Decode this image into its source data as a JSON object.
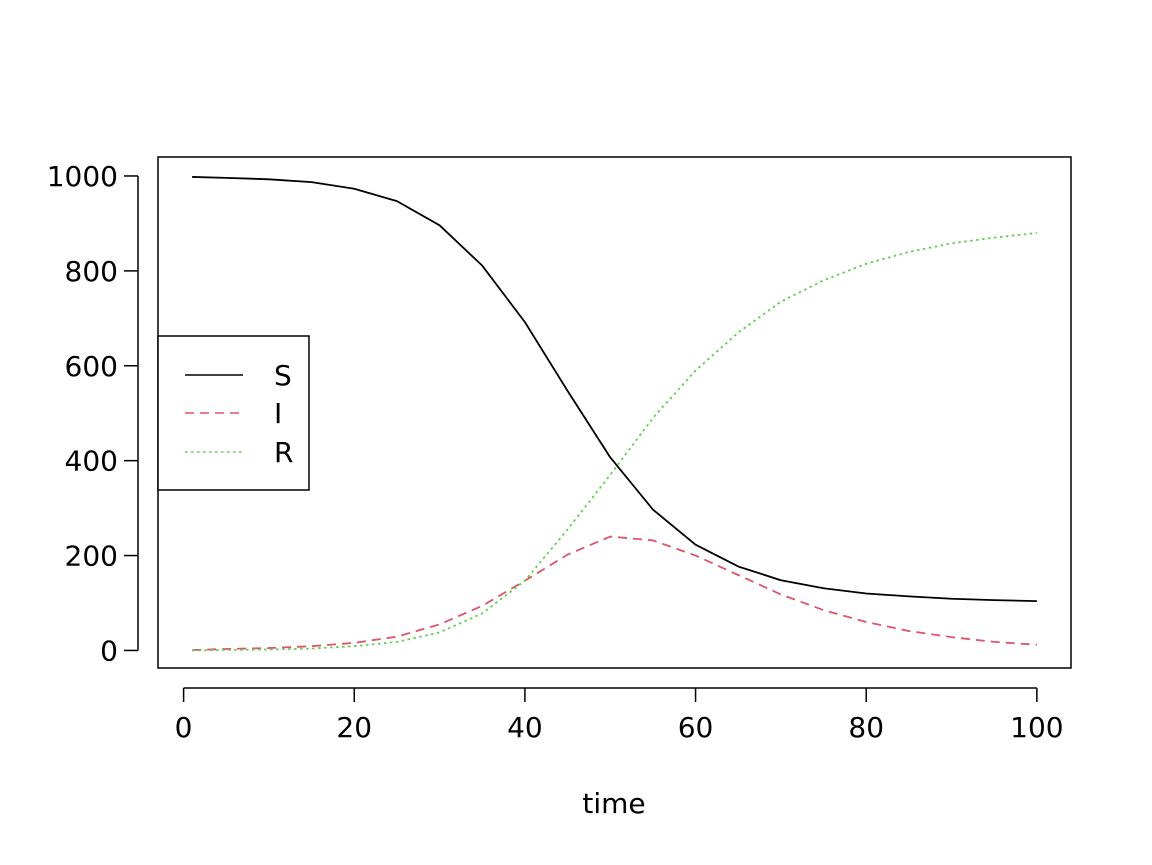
{
  "chart_data": {
    "type": "line",
    "title": "",
    "xlabel": "time",
    "ylabel": "",
    "xlim": [
      -3,
      104
    ],
    "ylim": [
      -37,
      1040
    ],
    "x_ticks": [
      0,
      20,
      40,
      60,
      80,
      100
    ],
    "y_ticks": [
      0,
      200,
      400,
      600,
      800,
      1000
    ],
    "grid": false,
    "legend": {
      "placement": "left",
      "entries": [
        "S",
        "I",
        "R"
      ]
    },
    "x": [
      1,
      5,
      10,
      15,
      20,
      25,
      30,
      35,
      40,
      45,
      50,
      55,
      60,
      65,
      70,
      75,
      80,
      85,
      90,
      95,
      100
    ],
    "series": [
      {
        "name": "S",
        "color": "#000000",
        "dash": "solid",
        "values": [
          998,
          996,
          993,
          987,
          973,
          947,
          896,
          811,
          692,
          547,
          407,
          297,
          223,
          177,
          148,
          131,
          120,
          114,
          109,
          106,
          104
        ]
      },
      {
        "name": "I",
        "color": "#DF536B",
        "dash": "dashed",
        "values": [
          1,
          3,
          5,
          9,
          16,
          29,
          55,
          94,
          147,
          202,
          240,
          232,
          200,
          159,
          118,
          85,
          60,
          41,
          28,
          18,
          12
        ]
      },
      {
        "name": "R",
        "color": "#61D04F",
        "dash": "dotted",
        "values": [
          0,
          1,
          2,
          4,
          9,
          18,
          38,
          78,
          147,
          255,
          370,
          490,
          590,
          670,
          735,
          780,
          815,
          840,
          858,
          870,
          880
        ]
      }
    ]
  }
}
